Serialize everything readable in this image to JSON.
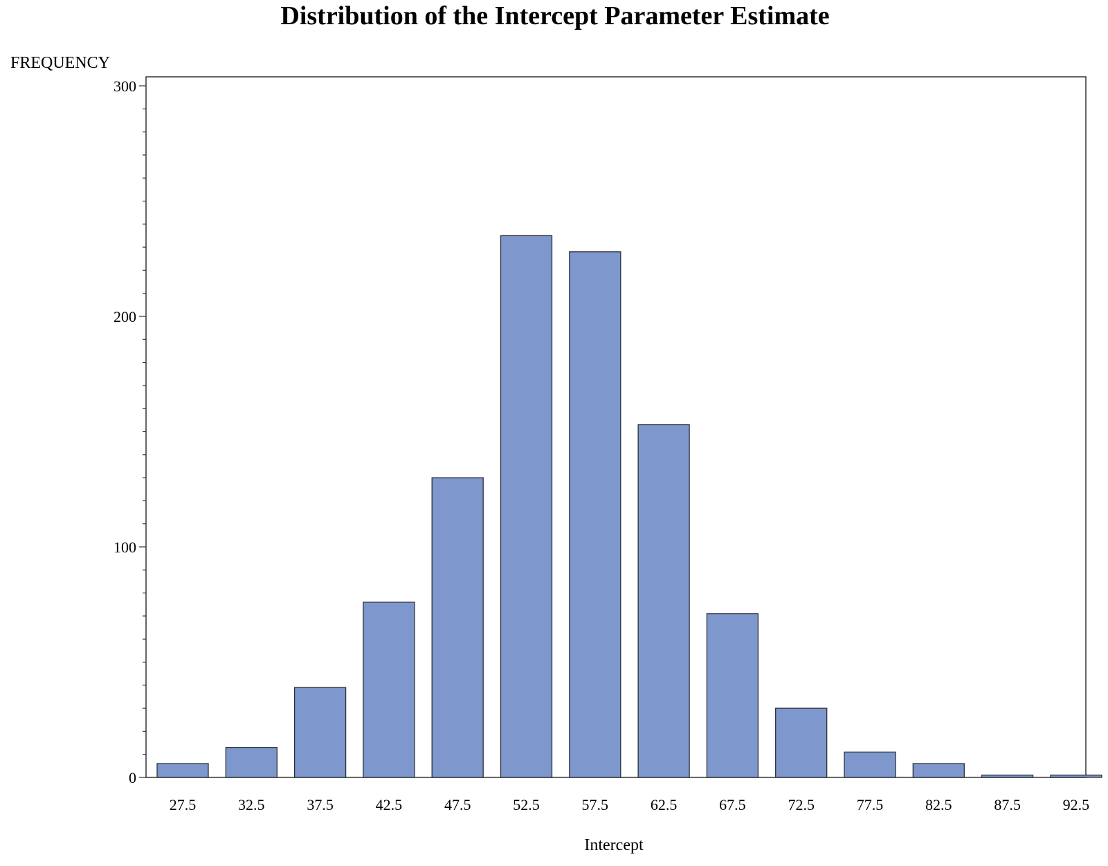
{
  "chart_data": {
    "type": "bar",
    "title": "Distribution of the Intercept Parameter Estimate",
    "xlabel": "Intercept",
    "ylabel": "FREQUENCY",
    "categories": [
      "27.5",
      "32.5",
      "37.5",
      "42.5",
      "47.5",
      "52.5",
      "57.5",
      "62.5",
      "67.5",
      "72.5",
      "77.5",
      "82.5",
      "87.5",
      "92.5"
    ],
    "values": [
      6,
      13,
      39,
      76,
      130,
      235,
      228,
      153,
      71,
      30,
      11,
      6,
      1,
      1
    ],
    "ylim": [
      0,
      300
    ],
    "yticks": [
      0,
      100,
      200,
      300
    ],
    "grid": false,
    "colors": {
      "bar_fill": "#7e97cc",
      "bar_stroke": "#2b2f3a",
      "axis": "#333333"
    }
  }
}
